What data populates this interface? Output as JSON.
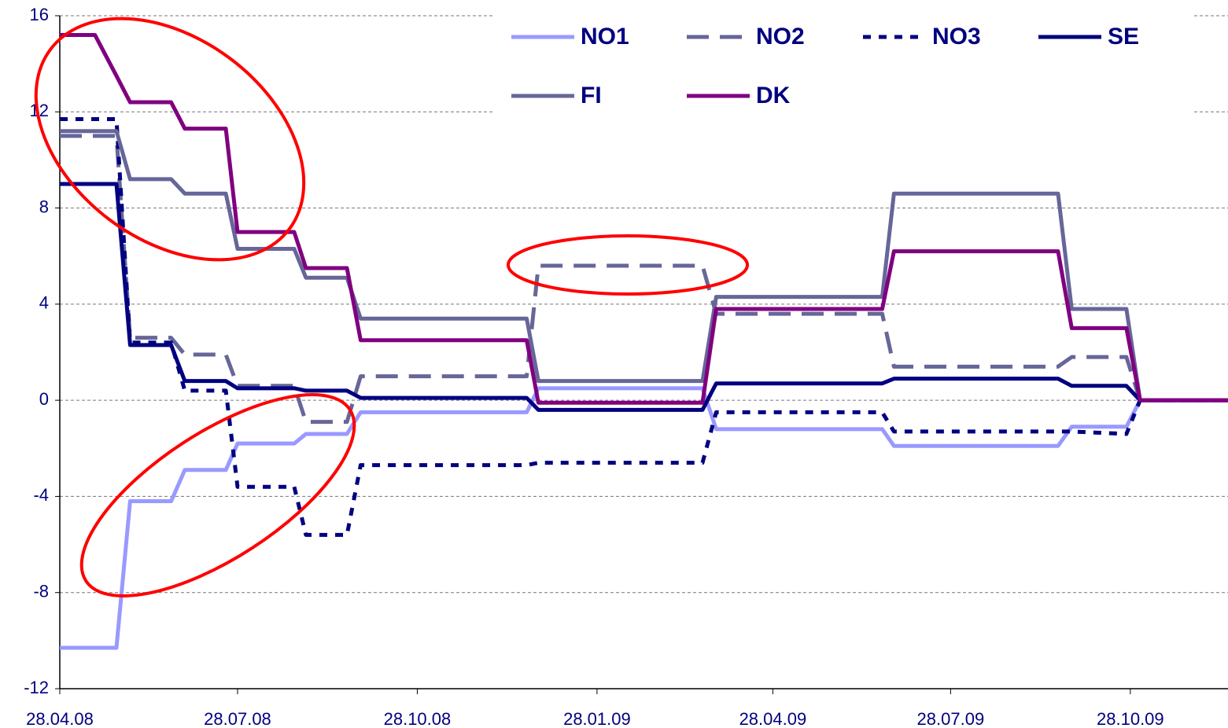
{
  "chart_data": {
    "type": "line",
    "x": [
      "2008-04-28",
      "2008-05-16",
      "2008-05-27",
      "2008-06-03",
      "2008-06-24",
      "2008-07-01",
      "2008-07-22",
      "2008-07-28",
      "2008-08-26",
      "2008-09-01",
      "2008-09-22",
      "2008-09-29",
      "2008-12-23",
      "2008-12-29",
      "2009-03-23",
      "2009-03-30",
      "2009-06-23",
      "2009-06-29",
      "2009-09-21",
      "2009-09-28",
      "2009-10-26",
      "2009-11-02",
      "2009-12-17"
    ],
    "series": [
      {
        "name": "NO1",
        "color": "#9999ff",
        "dash": "solid",
        "values": [
          -10.3,
          -10.3,
          -10.3,
          -4.2,
          -4.2,
          -2.9,
          -2.9,
          -1.8,
          -1.8,
          -1.4,
          -1.4,
          -0.5,
          -0.5,
          0.5,
          0.5,
          -1.2,
          -1.2,
          -1.9,
          -1.9,
          -1.1,
          -1.1,
          0,
          0
        ]
      },
      {
        "name": "NO2",
        "color": "#666699",
        "dash": "dashed",
        "values": [
          11,
          11,
          11,
          2.6,
          2.6,
          1.9,
          1.9,
          0.6,
          0.6,
          -0.9,
          -0.9,
          1.0,
          1.0,
          5.6,
          5.6,
          3.6,
          3.6,
          1.4,
          1.4,
          1.8,
          1.8,
          0,
          0
        ]
      },
      {
        "name": "NO3",
        "color": "#000080",
        "dash": "dotted",
        "values": [
          11.7,
          11.7,
          11.7,
          2.4,
          2.4,
          0.4,
          0.4,
          -3.6,
          -3.6,
          -5.6,
          -5.6,
          -2.7,
          -2.7,
          -2.6,
          -2.6,
          -0.5,
          -0.5,
          -1.3,
          -1.3,
          -1.3,
          -1.4,
          0,
          0
        ]
      },
      {
        "name": "SE",
        "color": "#000080",
        "dash": "solid",
        "values": [
          9.0,
          9.0,
          9.0,
          2.3,
          2.3,
          0.8,
          0.8,
          0.5,
          0.5,
          0.4,
          0.4,
          0.1,
          0.1,
          -0.4,
          -0.4,
          0.7,
          0.7,
          0.9,
          0.9,
          0.6,
          0.6,
          0,
          0
        ]
      },
      {
        "name": "FI",
        "color": "#666699",
        "dash": "solid",
        "values": [
          11.2,
          11.2,
          11.2,
          9.2,
          9.2,
          8.6,
          8.6,
          6.3,
          6.3,
          5.1,
          5.1,
          3.4,
          3.4,
          0.8,
          0.8,
          4.3,
          4.3,
          8.6,
          8.6,
          3.8,
          3.8,
          0,
          0
        ]
      },
      {
        "name": "DK",
        "color": "#800080",
        "dash": "solid",
        "values": [
          15.2,
          15.2,
          13.5,
          12.4,
          12.4,
          11.3,
          11.3,
          7.0,
          7.0,
          5.5,
          5.5,
          2.5,
          2.5,
          -0.1,
          -0.1,
          3.8,
          3.8,
          6.2,
          6.2,
          3.0,
          3.0,
          0,
          0
        ]
      }
    ],
    "xlim": [
      "2008-04-28",
      "2009-12-17"
    ],
    "xticks": [
      {
        "value": "2008-04-28",
        "label": "28.04.08"
      },
      {
        "value": "2008-07-28",
        "label": "28.07.08"
      },
      {
        "value": "2008-10-28",
        "label": "28.10.08"
      },
      {
        "value": "2009-01-28",
        "label": "28.01.09"
      },
      {
        "value": "2009-04-28",
        "label": "28.04.09"
      },
      {
        "value": "2009-07-28",
        "label": "28.07.09"
      },
      {
        "value": "2009-10-28",
        "label": "28.10.09"
      }
    ],
    "ylim": [
      -12,
      16
    ],
    "yticks": [
      -12,
      -8,
      -4,
      0,
      4,
      8,
      12,
      16
    ],
    "grid": true,
    "legend": "top"
  }
}
